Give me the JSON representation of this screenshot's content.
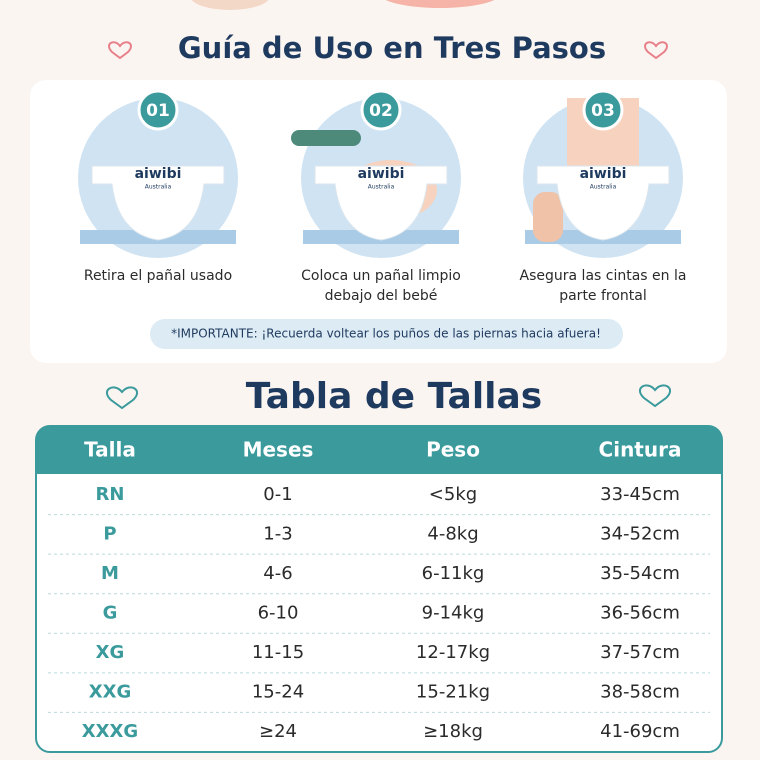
{
  "header": {
    "title": "Guía de Uso en Tres Pasos"
  },
  "steps": [
    {
      "number": "01",
      "lines": [
        "Retira el pañal usado"
      ]
    },
    {
      "number": "02",
      "lines": [
        "Coloca un pañal limpio",
        "debajo del bebé"
      ]
    },
    {
      "number": "03",
      "lines": [
        "Asegura las cintas en la",
        "parte frontal"
      ]
    }
  ],
  "brand": {
    "name": "aiwibi",
    "sub": "Australia"
  },
  "note": "*IMPORTANTE: ¡Recuerda voltear los puños de las piernas hacia afuera!",
  "table": {
    "title": "Tabla de Tallas",
    "header": [
      "Talla",
      "Meses",
      "Peso",
      "Cintura"
    ],
    "rows": [
      [
        "RN",
        "0-1",
        "<5kg",
        "33-45cm"
      ],
      [
        "P",
        "1-3",
        "4-8kg",
        "34-52cm"
      ],
      [
        "M",
        "4-6",
        "6-11kg",
        "35-54cm"
      ],
      [
        "G",
        "6-10",
        "9-14kg",
        "36-56cm"
      ],
      [
        "XG",
        "11-15",
        "12-17kg",
        "37-57cm"
      ],
      [
        "XXG",
        "15-24",
        "15-21kg",
        "38-58cm"
      ],
      [
        "XXXG",
        "≥24",
        "≥18kg",
        "41-69cm"
      ]
    ]
  }
}
